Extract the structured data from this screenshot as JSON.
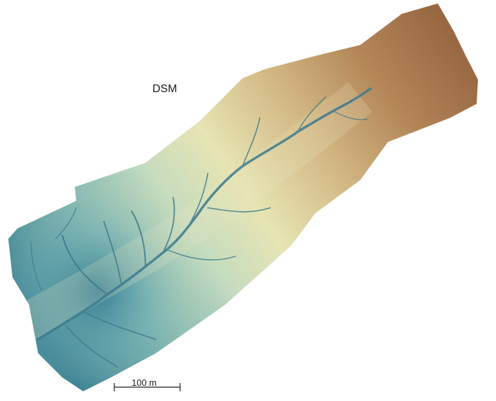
{
  "map": {
    "title": "DSM",
    "scale_bar": {
      "label": "100 m"
    },
    "colors": {
      "high": "#a56d43",
      "mid_high": "#d8b37a",
      "mid": "#f2eeb8",
      "low_mid": "#a9d1bf",
      "low": "#2e7f98",
      "channel": "#3f7f93"
    }
  }
}
